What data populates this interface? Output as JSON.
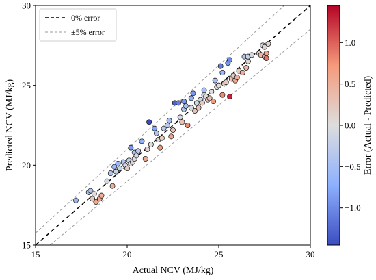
{
  "chart_data": {
    "type": "scatter",
    "title": "",
    "xlabel": "Actual NCV (MJ/kg)",
    "ylabel": "Predicted NCV (MJ/kg)",
    "xlim": [
      15,
      30
    ],
    "ylim": [
      15,
      30
    ],
    "x_ticks": [
      "15",
      "20",
      "25",
      "30"
    ],
    "y_ticks": [
      "15",
      "20",
      "25",
      "30"
    ],
    "grid": false,
    "legend_position": "top-left",
    "legend": [
      {
        "label": "0% error",
        "style": "dashed",
        "color": "#000000"
      },
      {
        "label": "±5% error",
        "style": "dashed",
        "color": "#9a9a9a"
      }
    ],
    "reference_lines": [
      {
        "name": "0% error",
        "slope": 1.0
      },
      {
        "name": "+5% error",
        "slope": 1.05
      },
      {
        "name": "-5% error",
        "slope": 0.95
      }
    ],
    "colorbar": {
      "label": "Error (Actual - Predicted)",
      "colormap": "coolwarm",
      "range": [
        -1.45,
        1.45
      ],
      "ticks": [
        "−1.0",
        "−0.5",
        "0.0",
        "0.5",
        "1.0"
      ],
      "tick_values": [
        -1.0,
        -0.5,
        0.0,
        0.5,
        1.0
      ],
      "low_color": "#3b4cc0",
      "mid_color": "#dddddd",
      "high_color": "#b40426"
    },
    "points": [
      {
        "x": 17.2,
        "y": 17.8
      },
      {
        "x": 17.9,
        "y": 18.3
      },
      {
        "x": 18.0,
        "y": 18.4
      },
      {
        "x": 18.2,
        "y": 18.2
      },
      {
        "x": 18.1,
        "y": 17.9
      },
      {
        "x": 18.3,
        "y": 17.7
      },
      {
        "x": 18.5,
        "y": 17.9
      },
      {
        "x": 18.6,
        "y": 18.1
      },
      {
        "x": 18.9,
        "y": 19.0
      },
      {
        "x": 19.1,
        "y": 19.5
      },
      {
        "x": 19.4,
        "y": 19.6
      },
      {
        "x": 19.6,
        "y": 19.8
      },
      {
        "x": 19.3,
        "y": 19.9
      },
      {
        "x": 19.5,
        "y": 20.1
      },
      {
        "x": 19.8,
        "y": 20.2
      },
      {
        "x": 19.9,
        "y": 20.0
      },
      {
        "x": 20.0,
        "y": 19.8
      },
      {
        "x": 19.2,
        "y": 18.7
      },
      {
        "x": 20.1,
        "y": 20.3
      },
      {
        "x": 20.2,
        "y": 20.1
      },
      {
        "x": 20.3,
        "y": 20.2
      },
      {
        "x": 20.4,
        "y": 20.4
      },
      {
        "x": 20.2,
        "y": 21.1
      },
      {
        "x": 20.4,
        "y": 20.8
      },
      {
        "x": 20.6,
        "y": 20.9
      },
      {
        "x": 20.8,
        "y": 21.5
      },
      {
        "x": 21.0,
        "y": 20.4
      },
      {
        "x": 21.2,
        "y": 22.7
      },
      {
        "x": 21.1,
        "y": 21.0
      },
      {
        "x": 21.3,
        "y": 21.3
      },
      {
        "x": 21.5,
        "y": 22.3
      },
      {
        "x": 21.6,
        "y": 22.0
      },
      {
        "x": 21.7,
        "y": 21.6
      },
      {
        "x": 21.9,
        "y": 21.7
      },
      {
        "x": 21.8,
        "y": 21.1
      },
      {
        "x": 22.2,
        "y": 22.5
      },
      {
        "x": 22.4,
        "y": 21.8
      },
      {
        "x": 22.3,
        "y": 22.8
      },
      {
        "x": 22.5,
        "y": 22.2
      },
      {
        "x": 22.6,
        "y": 23.9
      },
      {
        "x": 22.8,
        "y": 23.9
      },
      {
        "x": 22.9,
        "y": 23.0
      },
      {
        "x": 23.0,
        "y": 22.7
      },
      {
        "x": 23.1,
        "y": 24.0
      },
      {
        "x": 23.1,
        "y": 23.5
      },
      {
        "x": 23.2,
        "y": 23.7
      },
      {
        "x": 23.3,
        "y": 22.5
      },
      {
        "x": 23.5,
        "y": 23.6
      },
      {
        "x": 23.5,
        "y": 24.2
      },
      {
        "x": 23.6,
        "y": 24.5
      },
      {
        "x": 23.7,
        "y": 23.4
      },
      {
        "x": 23.8,
        "y": 23.9
      },
      {
        "x": 23.9,
        "y": 23.6
      },
      {
        "x": 24.0,
        "y": 24.1
      },
      {
        "x": 24.1,
        "y": 23.9
      },
      {
        "x": 24.2,
        "y": 24.4
      },
      {
        "x": 24.2,
        "y": 24.7
      },
      {
        "x": 24.3,
        "y": 24.3
      },
      {
        "x": 24.4,
        "y": 24.1
      },
      {
        "x": 24.5,
        "y": 24.2
      },
      {
        "x": 24.6,
        "y": 24.6
      },
      {
        "x": 24.7,
        "y": 24.0
      },
      {
        "x": 24.8,
        "y": 25.3
      },
      {
        "x": 24.9,
        "y": 24.9
      },
      {
        "x": 25.0,
        "y": 25.0
      },
      {
        "x": 25.1,
        "y": 26.2
      },
      {
        "x": 25.2,
        "y": 25.8
      },
      {
        "x": 25.2,
        "y": 24.4
      },
      {
        "x": 25.3,
        "y": 25.1
      },
      {
        "x": 25.4,
        "y": 25.2
      },
      {
        "x": 25.5,
        "y": 26.4
      },
      {
        "x": 25.6,
        "y": 26.6
      },
      {
        "x": 25.6,
        "y": 24.3
      },
      {
        "x": 25.7,
        "y": 25.4
      },
      {
        "x": 25.8,
        "y": 25.6
      },
      {
        "x": 25.9,
        "y": 25.3
      },
      {
        "x": 26.0,
        "y": 25.5
      },
      {
        "x": 26.1,
        "y": 25.9
      },
      {
        "x": 26.3,
        "y": 25.8
      },
      {
        "x": 26.4,
        "y": 26.8
      },
      {
        "x": 26.5,
        "y": 26.1
      },
      {
        "x": 26.6,
        "y": 26.5
      },
      {
        "x": 26.6,
        "y": 26.8
      },
      {
        "x": 26.8,
        "y": 26.9
      },
      {
        "x": 27.2,
        "y": 27.0
      },
      {
        "x": 27.3,
        "y": 26.9
      },
      {
        "x": 27.4,
        "y": 27.5
      },
      {
        "x": 27.5,
        "y": 26.8
      },
      {
        "x": 27.5,
        "y": 27.4
      },
      {
        "x": 27.6,
        "y": 26.7
      },
      {
        "x": 27.6,
        "y": 27.0
      },
      {
        "x": 27.7,
        "y": 27.6
      },
      {
        "x": 22.0,
        "y": 22.3
      },
      {
        "x": 20.5,
        "y": 20.6
      }
    ]
  }
}
